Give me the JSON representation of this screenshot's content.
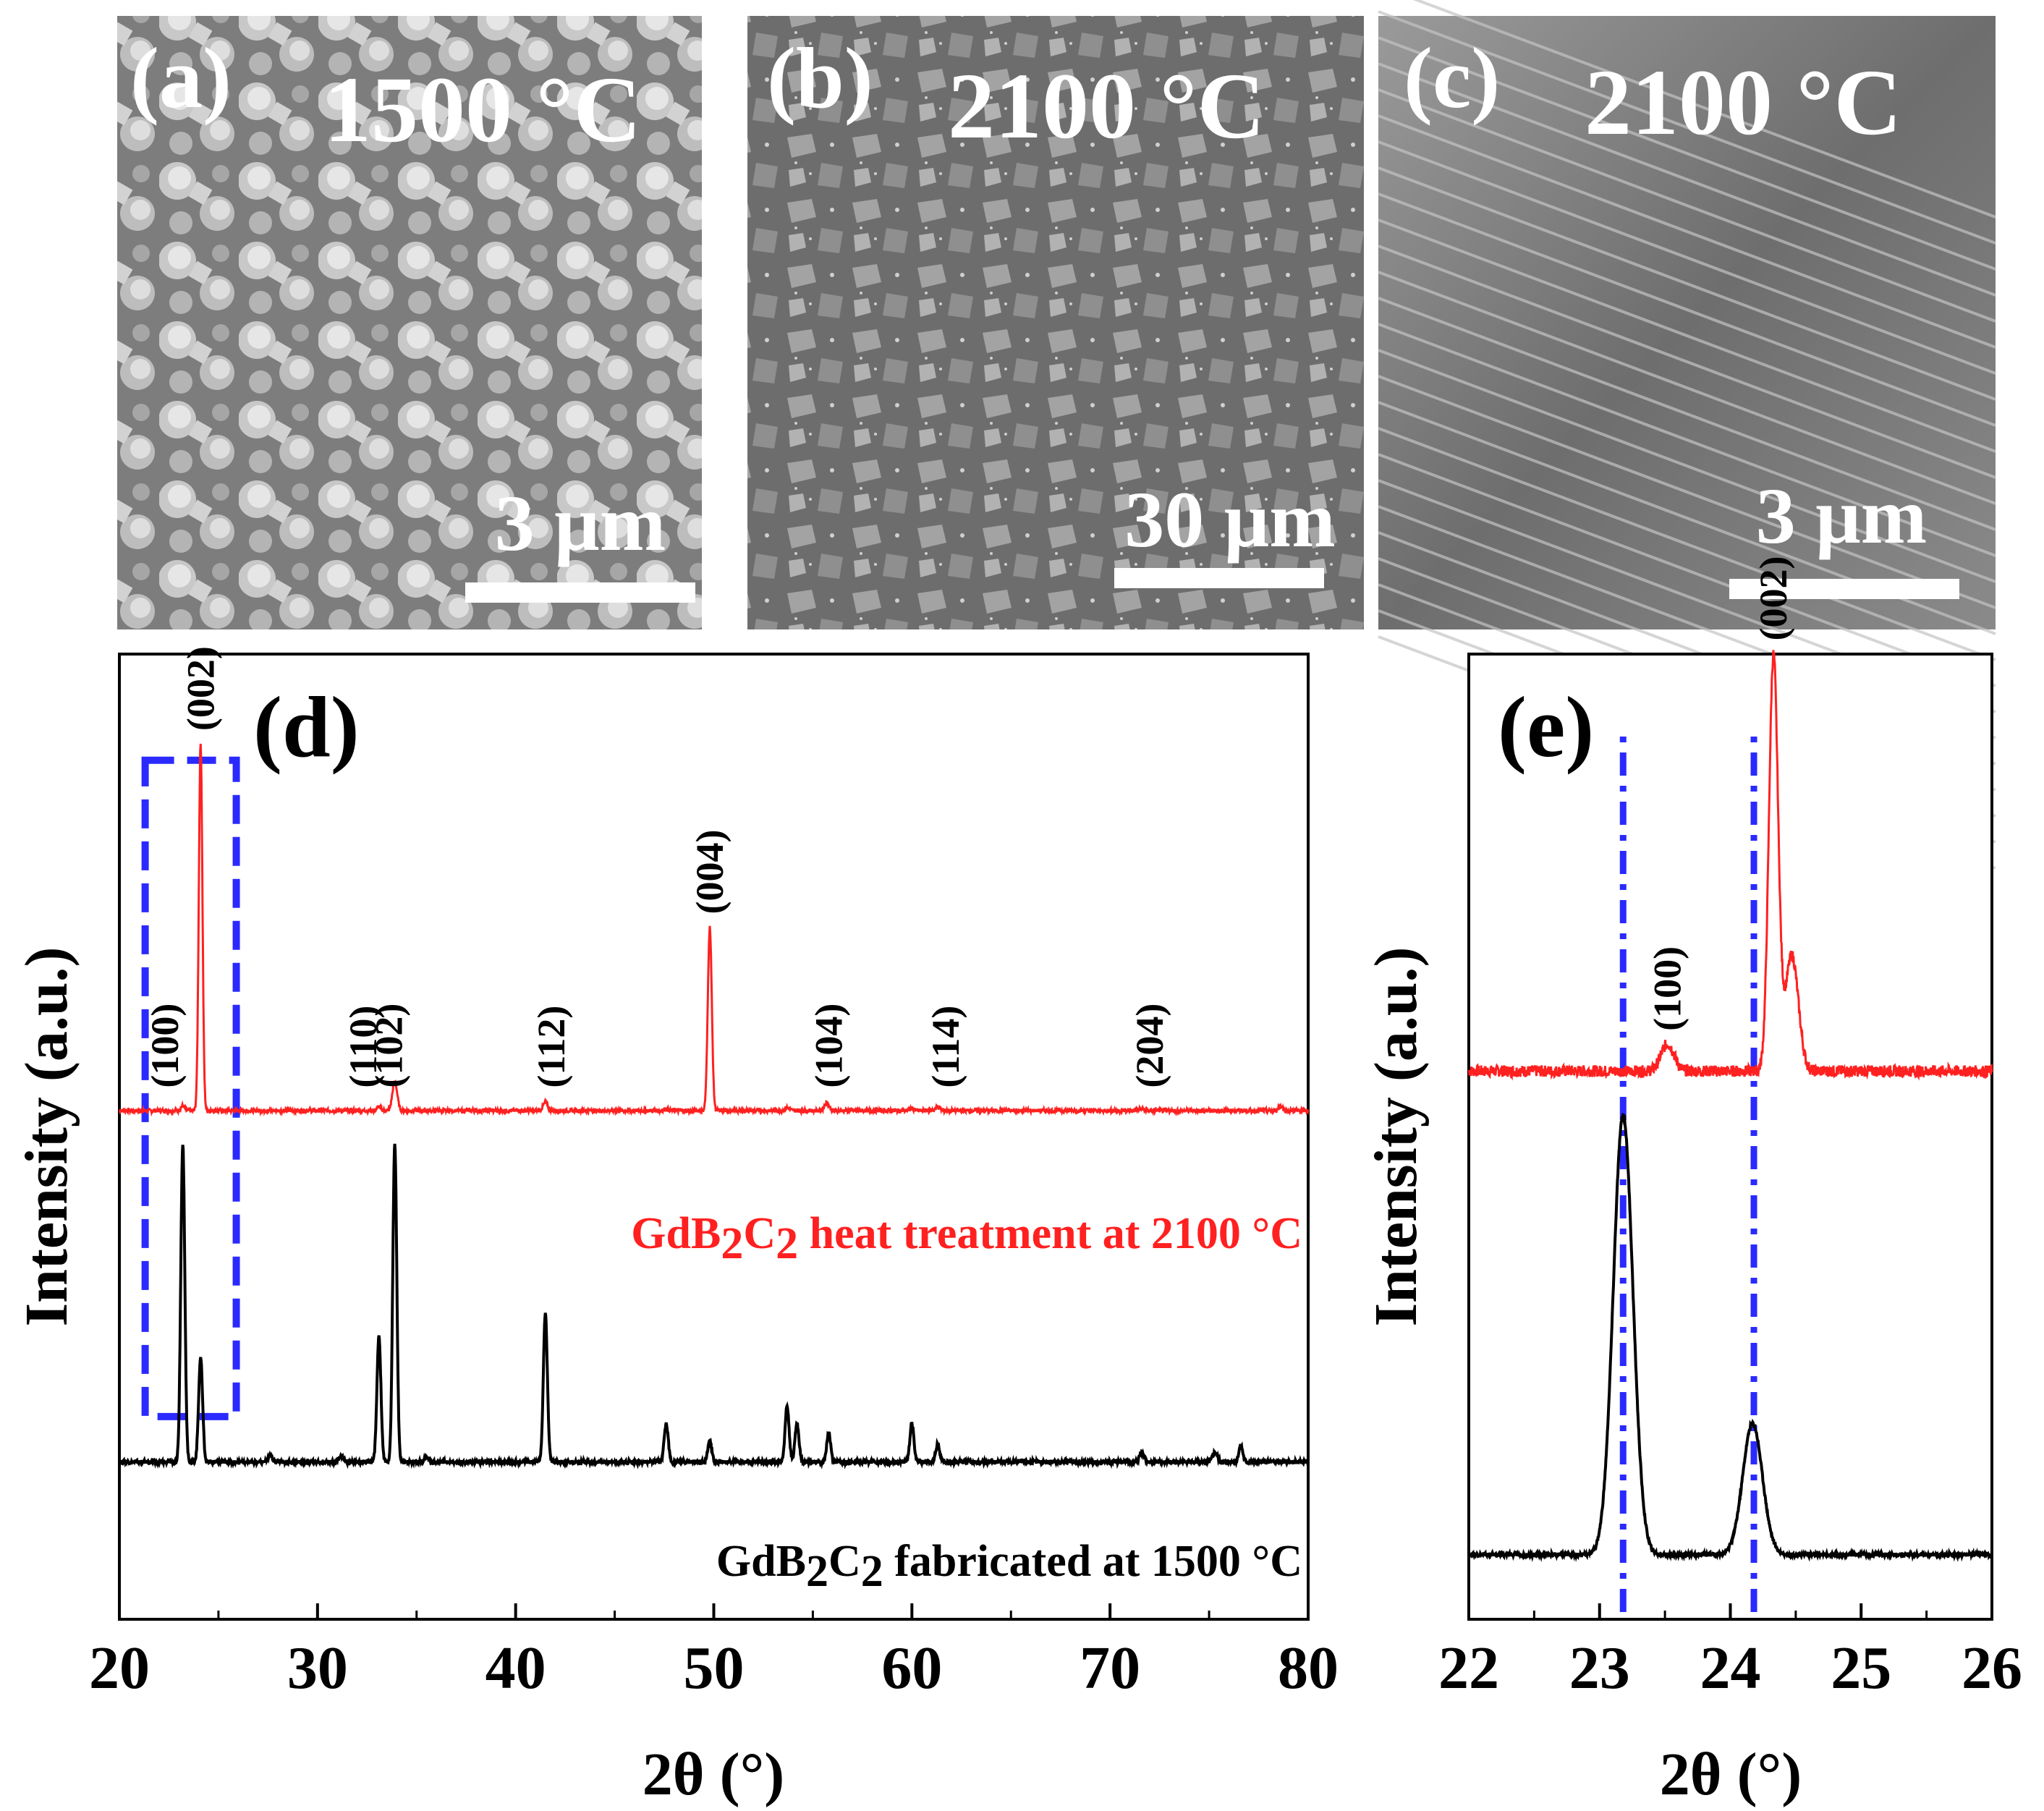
{
  "panels_sem": [
    {
      "label": "(a)",
      "temp": "1500 °C",
      "scale": "3 μm",
      "style": "equiaxed"
    },
    {
      "label": "(b)",
      "temp": "2100 °C",
      "scale": "30 μm",
      "style": "flakes"
    },
    {
      "label": "(c)",
      "temp": "2100 °C",
      "scale": "3 μm",
      "style": "layered"
    }
  ],
  "chart_data": [
    {
      "type": "line",
      "panel_label": "(d)",
      "xlabel": "2θ (°)",
      "ylabel": "Intensity (a.u.)",
      "xlim": [
        20,
        80
      ],
      "ylim": [
        0,
        1
      ],
      "xticks": [
        "20",
        "30",
        "40",
        "50",
        "60",
        "70",
        "80"
      ],
      "series": [
        {
          "name": "GdB2C2 heat treatment at 2100 °C",
          "legend_main": "GdB",
          "legend_parts": [
            "2",
            "C",
            "2",
            " heat treatment at 2100 °C"
          ],
          "color": "#ff2020",
          "baseline": 0.527,
          "peaks": [
            {
              "x": 23.2,
              "h": 0.005,
              "w": 0.1
            },
            {
              "x": 24.1,
              "h": 0.38,
              "w": 0.09
            },
            {
              "x": 33.1,
              "h": 0.004,
              "w": 0.1
            },
            {
              "x": 33.9,
              "h": 0.03,
              "w": 0.12
            },
            {
              "x": 41.5,
              "h": 0.008,
              "w": 0.12
            },
            {
              "x": 47.6,
              "h": 0.002,
              "w": 0.12
            },
            {
              "x": 49.8,
              "h": 0.19,
              "w": 0.1
            },
            {
              "x": 53.7,
              "h": 0.003,
              "w": 0.12
            },
            {
              "x": 55.7,
              "h": 0.008,
              "w": 0.12
            },
            {
              "x": 60.0,
              "h": 0.002,
              "w": 0.12
            },
            {
              "x": 61.3,
              "h": 0.004,
              "w": 0.12
            },
            {
              "x": 71.6,
              "h": 0.002,
              "w": 0.12
            },
            {
              "x": 78.6,
              "h": 0.005,
              "w": 0.1
            }
          ],
          "annotations": [
            {
              "text": "(002)",
              "x": 24.1
            },
            {
              "text": "(100)",
              "x": 22.3
            },
            {
              "text": "(110)",
              "x": 32.3
            },
            {
              "text": "(102)",
              "x": 33.6
            },
            {
              "text": "(112)",
              "x": 41.8
            },
            {
              "text": "(004)",
              "x": 49.8
            },
            {
              "text": "(104)",
              "x": 55.8
            },
            {
              "text": "(114)",
              "x": 61.7
            },
            {
              "text": "(204)",
              "x": 72.0
            }
          ]
        },
        {
          "name": "GdB2C2 fabricated at 1500 °C",
          "legend_main": "GdB",
          "legend_parts": [
            "2",
            "C",
            "2",
            " fabricated at 1500 °C"
          ],
          "color": "#000000",
          "baseline": 0.163,
          "peaks": [
            {
              "x": 23.2,
              "h": 0.33,
              "w": 0.1
            },
            {
              "x": 24.1,
              "h": 0.108,
              "w": 0.1
            },
            {
              "x": 27.6,
              "h": 0.006,
              "w": 0.12
            },
            {
              "x": 31.2,
              "h": 0.006,
              "w": 0.12
            },
            {
              "x": 33.1,
              "h": 0.13,
              "w": 0.1
            },
            {
              "x": 33.9,
              "h": 0.33,
              "w": 0.1
            },
            {
              "x": 35.5,
              "h": 0.005,
              "w": 0.12
            },
            {
              "x": 41.5,
              "h": 0.155,
              "w": 0.1
            },
            {
              "x": 47.6,
              "h": 0.04,
              "w": 0.1
            },
            {
              "x": 49.8,
              "h": 0.022,
              "w": 0.1
            },
            {
              "x": 53.7,
              "h": 0.058,
              "w": 0.1
            },
            {
              "x": 54.2,
              "h": 0.04,
              "w": 0.1
            },
            {
              "x": 55.8,
              "h": 0.03,
              "w": 0.1
            },
            {
              "x": 60.0,
              "h": 0.04,
              "w": 0.1
            },
            {
              "x": 61.3,
              "h": 0.018,
              "w": 0.1
            },
            {
              "x": 71.6,
              "h": 0.01,
              "w": 0.12
            },
            {
              "x": 75.3,
              "h": 0.01,
              "w": 0.12
            },
            {
              "x": 76.6,
              "h": 0.017,
              "w": 0.1
            }
          ]
        }
      ],
      "highlight_box": {
        "x0": 21.3,
        "x1": 25.9,
        "y0": 0.21,
        "y1": 0.89,
        "color": "#2a2aff"
      }
    },
    {
      "type": "line",
      "panel_label": "(e)",
      "xlabel": "2θ (°)",
      "ylabel": "Intensity (a.u.)",
      "xlim": [
        22,
        26
      ],
      "ylim": [
        0,
        1
      ],
      "xticks": [
        "22",
        "23",
        "24",
        "25",
        "26"
      ],
      "series": [
        {
          "name": "GdB2C2 heat treatment at 2100 °C (zoom)",
          "color": "#ff2020",
          "baseline": 0.568,
          "peaks": [
            {
              "x": 23.52,
              "h": 0.028,
              "w": 0.05
            },
            {
              "x": 24.33,
              "h": 0.43,
              "w": 0.035
            },
            {
              "x": 24.47,
              "h": 0.12,
              "w": 0.05
            }
          ],
          "annotations": [
            {
              "text": "(100)",
              "x": 23.52
            },
            {
              "text": "(002)",
              "x": 24.33
            }
          ]
        },
        {
          "name": "GdB2C2 fabricated at 1500 °C (zoom)",
          "color": "#000000",
          "baseline": 0.067,
          "peaks": [
            {
              "x": 23.18,
              "h": 0.455,
              "w": 0.075
            },
            {
              "x": 24.17,
              "h": 0.136,
              "w": 0.075
            }
          ]
        }
      ],
      "reference_lines": [
        {
          "x": 23.18,
          "color": "#2a2aff"
        },
        {
          "x": 24.18,
          "color": "#2a2aff"
        }
      ]
    }
  ]
}
